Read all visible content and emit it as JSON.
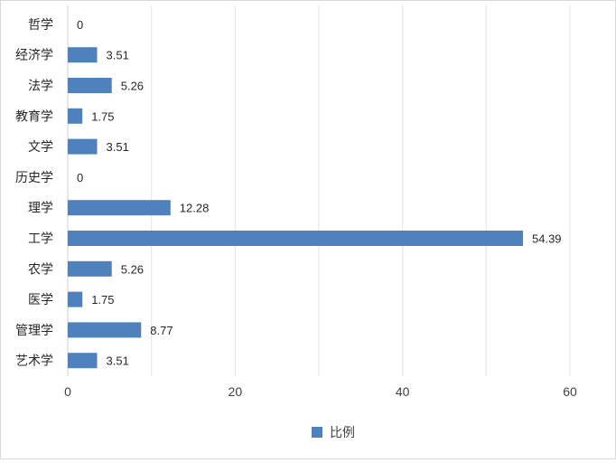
{
  "chart_data": {
    "type": "bar",
    "orientation": "horizontal",
    "categories": [
      "哲学",
      "经济学",
      "法学",
      "教育学",
      "文学",
      "历史学",
      "理学",
      "工学",
      "农学",
      "医学",
      "管理学",
      "艺术学"
    ],
    "series": [
      {
        "name": "比例",
        "values": [
          0,
          3.51,
          5.26,
          1.75,
          3.51,
          0,
          12.28,
          54.39,
          5.26,
          1.75,
          8.77,
          3.51
        ]
      }
    ],
    "data_labels": [
      "0",
      "3.51",
      "5.26",
      "1.75",
      "3.51",
      "0",
      "12.28",
      "54.39",
      "5.26",
      "1.75",
      "8.77",
      "3.51"
    ],
    "xlim": [
      0,
      60
    ],
    "x_ticks": [
      0,
      20,
      40,
      60
    ],
    "x_tick_labels": [
      "0",
      "20",
      "40",
      "60"
    ],
    "gridlines": "vertical, every 10",
    "legend_position": "bottom",
    "bar_color": "#4f81bd",
    "grid_color": "#e3e3e3"
  }
}
